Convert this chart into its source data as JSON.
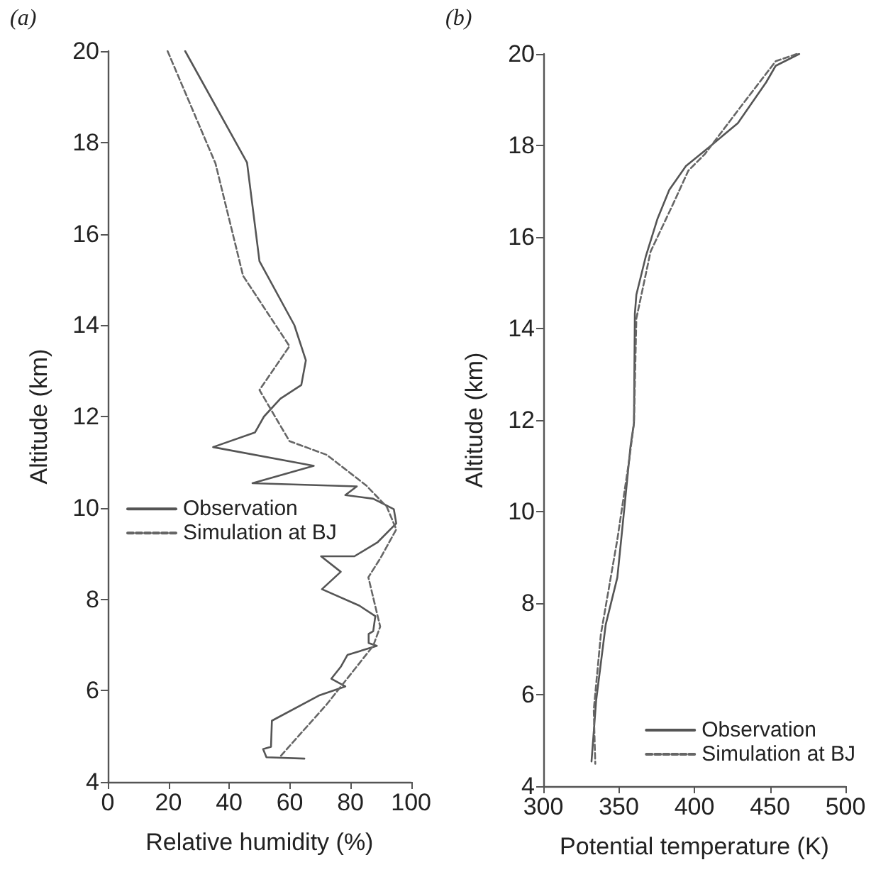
{
  "chart_data": [
    {
      "type": "line",
      "title": "(a)",
      "xlabel": "Relative humidity (%)",
      "ylabel": "Altitude (km)",
      "xlim": [
        0,
        100
      ],
      "xticks": [
        0,
        20,
        40,
        60,
        80,
        100
      ],
      "ylim": [
        4,
        20
      ],
      "yticks": [
        4,
        6,
        8,
        10,
        12,
        14,
        16,
        18,
        20
      ],
      "legend": "left",
      "marker": "none",
      "series": [
        {
          "name": "Observation",
          "color": "#555555",
          "line_style": "solid",
          "x": [
            25.5,
            45.9,
            50,
            61.5,
            65.3,
            63.8,
            56.9,
            51.5,
            48.5,
            34.7,
            67.9,
            47.7,
            82.1,
            78.3,
            87.5,
            94.3,
            95.1,
            89,
            81.3,
            70.3,
            76.8,
            70.6,
            82.9,
            88.2,
            87.5,
            86,
            86,
            88.7,
            79,
            76.8,
            73.7,
            78.3,
            69.9,
            54.1,
            53.8,
            51.2,
            52.3,
            64.8
          ],
          "values": [
            20,
            17.56,
            15.4,
            14.0,
            13.23,
            12.69,
            12.39,
            12,
            11.65,
            11.33,
            10.92,
            10.54,
            10.47,
            10.28,
            10.2,
            9.97,
            9.66,
            9.25,
            8.94,
            8.94,
            8.6,
            8.22,
            7.86,
            7.63,
            7.3,
            7.24,
            7.04,
            6.98,
            6.78,
            6.52,
            6.26,
            6.09,
            5.9,
            5.34,
            4.77,
            4.72,
            4.54,
            4.51
          ]
        },
        {
          "name": "Simulation at BJ",
          "color": "#666666",
          "line_style": "dashed",
          "x": [
            19.7,
            35.5,
            44.6,
            59.9,
            50,
            59.9,
            72.2,
            85.2,
            92,
            95.1,
            89.8,
            85.9,
            89.8,
            87.5,
            72.2,
            56.9
          ],
          "values": [
            20,
            17.54,
            15.08,
            13.54,
            12.58,
            11.46,
            11.16,
            10.49,
            10.02,
            9.53,
            8.89,
            8.48,
            7.4,
            6.98,
            5.7,
            4.56
          ]
        }
      ]
    },
    {
      "type": "line",
      "title": "(b)",
      "xlabel": "Potential temperature (K)",
      "ylabel": "Altitude (km)",
      "xlim": [
        300,
        500
      ],
      "xticks": [
        300,
        350,
        400,
        450,
        500
      ],
      "ylim": [
        4,
        20
      ],
      "yticks": [
        4,
        6,
        8,
        10,
        12,
        14,
        16,
        18,
        20
      ],
      "legend": "bottom right",
      "marker": "none",
      "series": [
        {
          "name": "Observation",
          "color": "#555555",
          "line_style": "solid",
          "x": [
            469.4,
            453.8,
            447.5,
            428.8,
            410,
            394.4,
            383.4,
            375.6,
            367.8,
            361.6,
            360.6,
            360,
            357.8,
            352.2,
            349,
            341.3,
            335,
            331.9
          ],
          "values": [
            20,
            19.74,
            19.38,
            18.49,
            17.97,
            17.55,
            17.03,
            16.4,
            15.57,
            14.74,
            14.32,
            11.93,
            11.45,
            9.6,
            8.56,
            7.53,
            5.88,
            4.54
          ]
        },
        {
          "name": "Simulation at BJ",
          "color": "#666666",
          "line_style": "dashed",
          "x": [
            467.8,
            453.8,
            431.9,
            406.9,
            396,
            386.6,
            371,
            361.6,
            360,
            356.9,
            349,
            338.1,
            333.4,
            334.4
          ],
          "values": [
            20,
            19.84,
            18.9,
            17.81,
            17.45,
            16.77,
            15.68,
            14.22,
            11.93,
            11.14,
            9.39,
            7.32,
            5.67,
            4.49
          ]
        }
      ]
    }
  ]
}
